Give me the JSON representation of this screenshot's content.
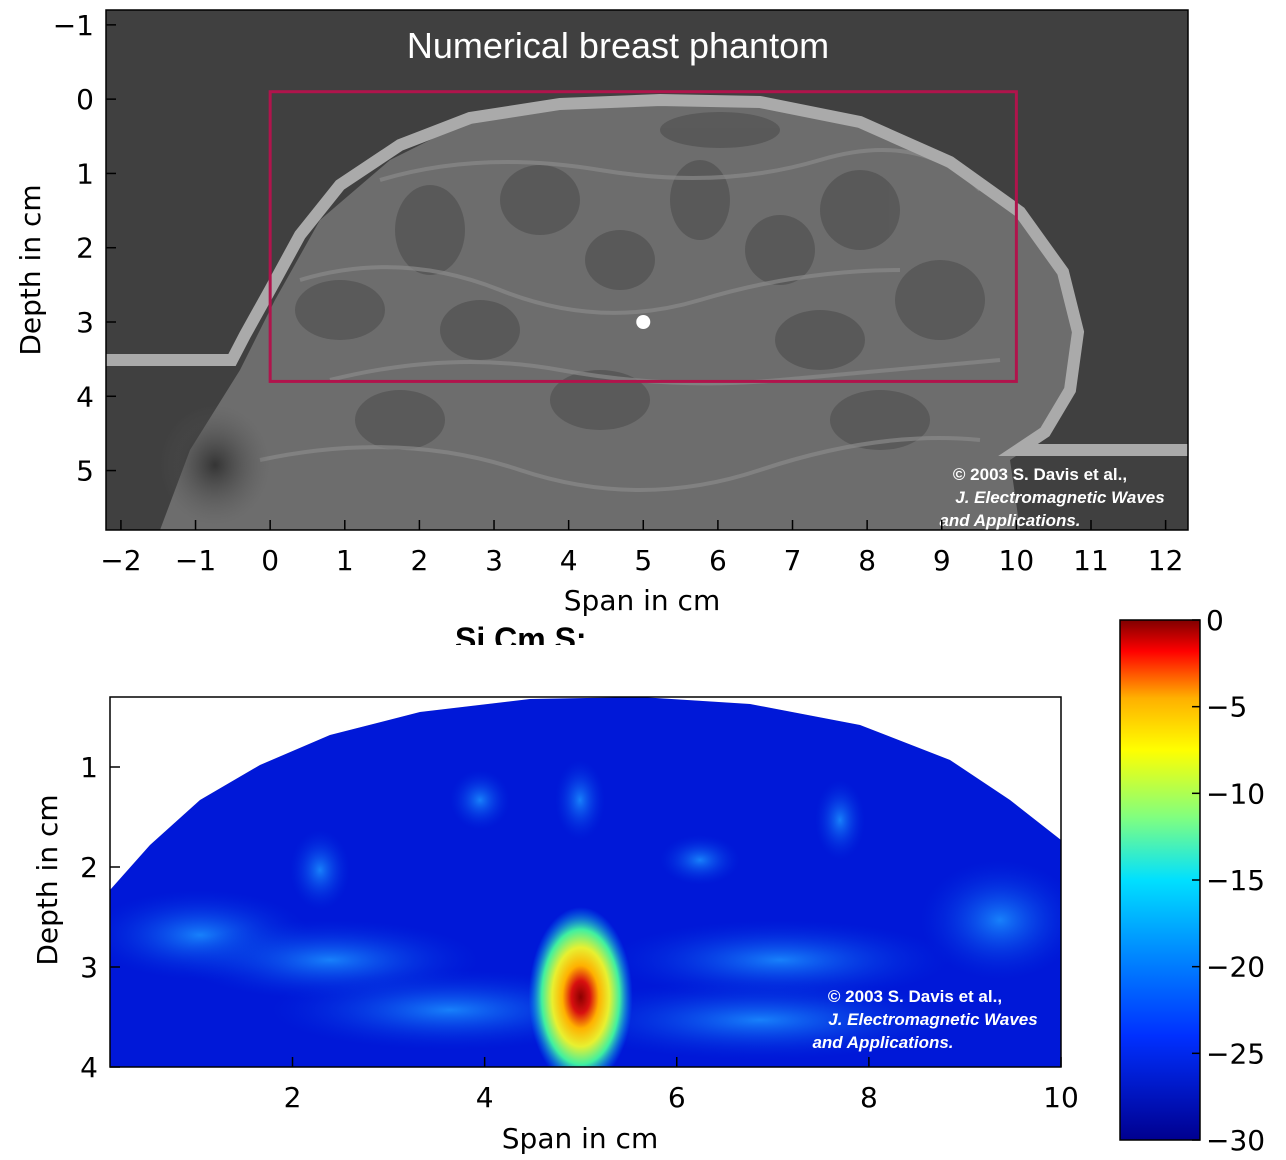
{
  "chart_data": [
    {
      "type": "heatmap",
      "title": "Numerical breast phantom",
      "xlabel": "Span in cm",
      "ylabel": "Depth in cm",
      "xlim": [
        -2.2,
        12.3
      ],
      "ylim": [
        5.8,
        -1.2
      ],
      "xticks": [
        "−2",
        "−1",
        "0",
        "1",
        "2",
        "3",
        "4",
        "5",
        "6",
        "7",
        "8",
        "9",
        "10",
        "11",
        "12"
      ],
      "yticks": [
        "−1",
        "0",
        "1",
        "2",
        "3",
        "4",
        "5"
      ],
      "roi_rect": {
        "x": [
          0,
          10
        ],
        "y": [
          -0.1,
          3.8
        ],
        "color": "#b0144c"
      },
      "target_point": {
        "x": 5.0,
        "y": 3.0
      },
      "outline_color": "#aaaaaa",
      "background_color": "#404040",
      "copyright": [
        "© 2003 S. Davis et al.,",
        "J. Electromagnetic Waves",
        "and Applications."
      ]
    },
    {
      "type": "heatmap",
      "xlabel": "Span in cm",
      "ylabel": "Depth in cm",
      "xlim": [
        0.1,
        10
      ],
      "ylim": [
        0.3,
        4
      ],
      "xticks": [
        "2",
        "4",
        "6",
        "8",
        "10"
      ],
      "yticks": [
        "1",
        "2",
        "3",
        "4"
      ],
      "peak": {
        "x": 5.0,
        "y": 3.3,
        "value": 0
      },
      "colorbar": {
        "min": -30,
        "max": 0,
        "ticks": [
          "0",
          "−5",
          "−10",
          "−15",
          "−20",
          "−25",
          "−30"
        ]
      },
      "copyright": [
        "© 2003 S. Davis et al.,",
        "J. Electromagnetic Waves",
        "and Applications."
      ]
    }
  ],
  "partial_text": "Si Cm S:"
}
